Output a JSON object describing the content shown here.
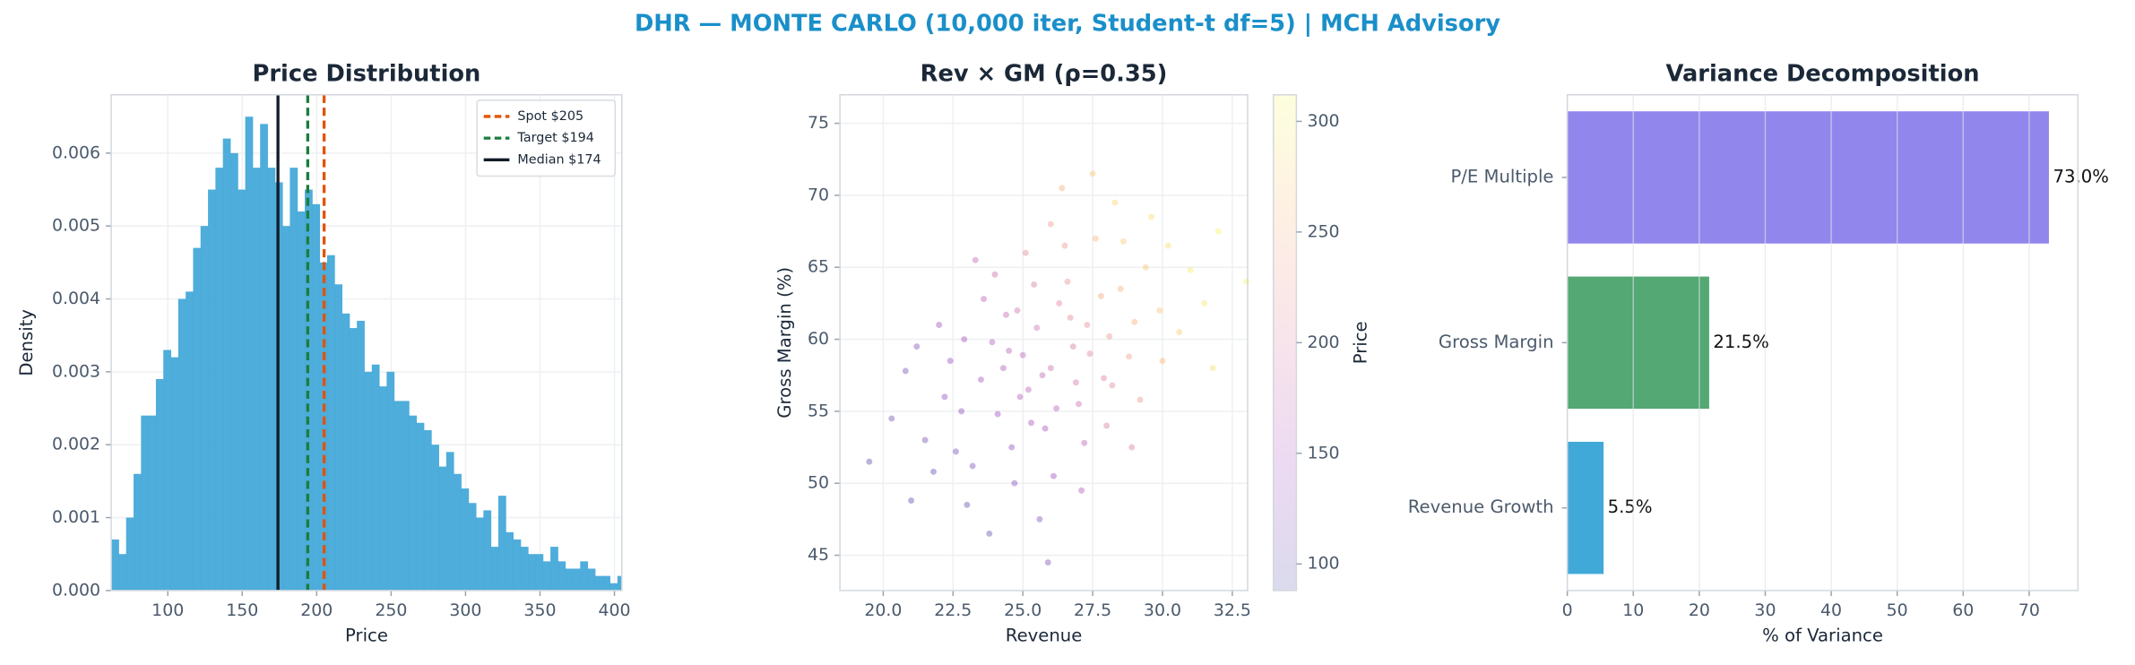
{
  "title": "DHR — MONTE CARLO (10,000 iter, Student-t df=5) | MCH Advisory",
  "chart_data": [
    {
      "type": "histogram",
      "title": "Price Distribution",
      "x_label": "Price",
      "y_label": "Density",
      "color": "#45a9d8",
      "bins": [
        62,
        67,
        72,
        77,
        82,
        87,
        92,
        97,
        102,
        107,
        112,
        117,
        122,
        127,
        132,
        137,
        142,
        147,
        152,
        157,
        162,
        167,
        172,
        177,
        182,
        187,
        192,
        197,
        202,
        207,
        212,
        217,
        222,
        227,
        232,
        237,
        242,
        247,
        252,
        257,
        262,
        267,
        272,
        277,
        282,
        287,
        292,
        297,
        302,
        307,
        312,
        317,
        322,
        327,
        332,
        337,
        342,
        347,
        352,
        357,
        362,
        367,
        372,
        377,
        382,
        387,
        392,
        397,
        402,
        407
      ],
      "values": [
        0.0007,
        0.0005,
        0.001,
        0.0016,
        0.0024,
        0.0024,
        0.0029,
        0.0033,
        0.0032,
        0.004,
        0.0041,
        0.0047,
        0.005,
        0.0055,
        0.0058,
        0.0062,
        0.006,
        0.0055,
        0.0065,
        0.0058,
        0.0064,
        0.0058,
        0.0056,
        0.005,
        0.0058,
        0.0052,
        0.0055,
        0.0053,
        0.0045,
        0.0046,
        0.0042,
        0.0038,
        0.0036,
        0.0037,
        0.003,
        0.0031,
        0.0028,
        0.003,
        0.0026,
        0.0026,
        0.0024,
        0.0023,
        0.0022,
        0.002,
        0.0017,
        0.0019,
        0.0016,
        0.0014,
        0.0012,
        0.001,
        0.0011,
        0.0006,
        0.0013,
        0.0008,
        0.0007,
        0.0006,
        0.0005,
        0.0005,
        0.0004,
        0.0006,
        0.0004,
        0.0003,
        0.0003,
        0.0004,
        0.0003,
        0.0002,
        0.0002,
        0.0001,
        0.0002
      ],
      "xlim": [
        62,
        405
      ],
      "ylim": [
        0,
        0.0068
      ],
      "xticks": [
        100,
        150,
        200,
        250,
        300,
        350,
        400
      ],
      "yticks": [
        {
          "value": 0,
          "label": "0.000"
        },
        0.001,
        0.002,
        0.003,
        0.004,
        0.005,
        0.006
      ],
      "grid": true,
      "legend": "upper right",
      "lines": [
        {
          "name": "Spot $205",
          "value": 205,
          "color": "#e65100",
          "dashed": true
        },
        {
          "name": "Target $194",
          "value": 194,
          "color": "#1b7d3e",
          "dashed": true
        },
        {
          "name": "Median $174",
          "value": 174,
          "color": "#111c2a",
          "dashed": false
        }
      ]
    },
    {
      "type": "scatter",
      "title": "Rev × GM (ρ=0.35)",
      "x_label": "Revenue",
      "y_label": "Gross Margin (%)",
      "x": [
        26.0,
        25.2,
        27.3,
        24.1,
        28.5,
        23.5,
        26.8,
        25.5,
        27.9,
        24.6,
        29.4,
        22.8,
        26.3,
        25.0,
        28.1,
        23.9,
        27.0,
        24.4,
        30.2,
        21.5,
        26.6,
        25.8,
        28.8,
        23.2,
        27.6,
        24.9,
        29.9,
        22.4,
        26.1,
        25.4,
        31.0,
        20.8,
        27.2,
        24.0,
        28.3,
        23.0,
        26.9,
        25.1,
        29.2,
        22.0,
        27.8,
        24.7,
        30.6,
        21.8,
        26.4,
        25.6,
        28.0,
        23.6,
        32.0,
        20.3,
        27.4,
        24.3,
        29.0,
        22.6,
        26.7,
        25.3,
        31.5,
        21.2,
        28.6,
        23.8,
        26.2,
        27.5,
        24.8,
        30.0,
        22.2,
        25.9,
        28.9,
        23.3,
        33.0,
        19.5,
        26.0,
        27.1,
        24.5,
        29.6,
        22.9,
        25.7,
        28.2,
        31.8,
        21.0,
        26.5
      ],
      "y": [
        58.0,
        56.5,
        61.0,
        54.8,
        63.5,
        57.2,
        59.5,
        60.8,
        57.3,
        52.5,
        65.0,
        55.0,
        62.5,
        58.9,
        60.2,
        59.8,
        55.5,
        61.7,
        66.5,
        53.0,
        64.0,
        53.8,
        58.8,
        51.2,
        67.0,
        56.0,
        62.0,
        58.5,
        50.5,
        63.8,
        64.8,
        57.8,
        52.8,
        64.5,
        69.5,
        48.5,
        57.0,
        66.0,
        55.8,
        61.0,
        63.0,
        50.0,
        60.5,
        50.8,
        70.5,
        47.5,
        54.0,
        62.8,
        67.5,
        54.5,
        59.0,
        58.0,
        61.2,
        52.2,
        61.5,
        54.2,
        62.5,
        59.5,
        66.8,
        46.5,
        55.2,
        71.5,
        62.0,
        58.5,
        56.0,
        44.5,
        52.5,
        65.5,
        64.0,
        51.5,
        68.0,
        49.5,
        59.2,
        68.5,
        60.0,
        57.5,
        56.8,
        58.0,
        48.8,
        66.5
      ],
      "c": [
        180,
        165,
        215,
        140,
        250,
        150,
        195,
        185,
        200,
        130,
        270,
        125,
        205,
        170,
        225,
        160,
        180,
        175,
        290,
        110,
        220,
        150,
        235,
        115,
        255,
        160,
        265,
        135,
        140,
        195,
        300,
        115,
        165,
        180,
        280,
        100,
        190,
        210,
        225,
        140,
        240,
        120,
        275,
        100,
        250,
        120,
        195,
        165,
        305,
        105,
        205,
        155,
        250,
        115,
        210,
        150,
        295,
        120,
        275,
        100,
        165,
        270,
        185,
        255,
        125,
        115,
        200,
        170,
        310,
        95,
        230,
        155,
        165,
        290,
        145,
        170,
        210,
        285,
        95,
        225
      ],
      "xlim": [
        18.45,
        33.05
      ],
      "ylim": [
        42.55,
        76.98
      ],
      "xticks": [
        {
          "value": 20,
          "label": "20.0"
        },
        22.5,
        {
          "value": 25,
          "label": "25.0"
        },
        27.5,
        {
          "value": 30,
          "label": "30.0"
        },
        32.5
      ],
      "yticks": [
        45,
        50,
        55,
        60,
        65,
        70,
        75
      ],
      "grid": true,
      "alpha": 0.3,
      "colormap": [
        "#0d0887",
        "#7e03a8",
        "#cc4778",
        "#f89540",
        "#f0f921"
      ],
      "colorbar": {
        "label": "Price",
        "lim": [
          88,
          312
        ],
        "ticks": [
          100,
          150,
          200,
          250,
          300
        ],
        "alpha": 0.15
      }
    },
    {
      "type": "bar",
      "orientation": "horizontal",
      "title": "Variance Decomposition",
      "x_label": "% of Variance",
      "categories": [
        "P/E Multiple",
        "Gross Margin",
        "Revenue Growth"
      ],
      "values": [
        73.0,
        21.5,
        5.5
      ],
      "value_labels": [
        "73.0%",
        "21.5%",
        "5.5%"
      ],
      "colors": [
        "#8b80ea",
        "#4aa36b",
        "#37a4d5"
      ],
      "xlim": [
        0,
        77.4
      ],
      "xticks": [
        0,
        10,
        20,
        30,
        40,
        50,
        60,
        70
      ],
      "grid": true
    }
  ]
}
